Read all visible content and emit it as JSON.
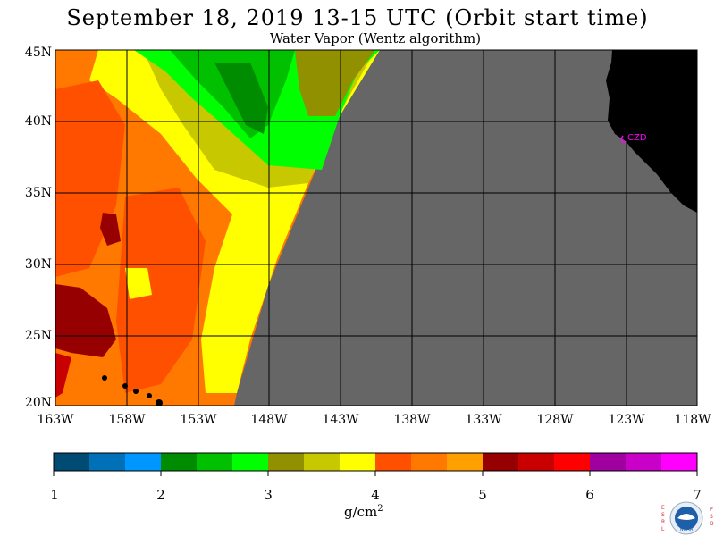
{
  "title": "September 18, 2019  13-15 UTC  (Orbit start time)",
  "subtitle": "Water Vapor (Wentz algorithm)",
  "map": {
    "lat_labels": [
      "45N",
      "40N",
      "35N",
      "30N",
      "25N",
      "20N"
    ],
    "lon_labels": [
      "163W",
      "158W",
      "153W",
      "148W",
      "143W",
      "138W",
      "133W",
      "128W",
      "123W",
      "118W"
    ],
    "lat_range": [
      20,
      45
    ],
    "lon_range": [
      -163,
      -118
    ],
    "no_data_color": "#666666",
    "land_color": "#000000",
    "station_label": "CZD",
    "station_color": "#ff00ff"
  },
  "colorbar": {
    "labels": [
      "1",
      "2",
      "3",
      "4",
      "5",
      "6",
      "7"
    ],
    "unit_text": "g/cm",
    "unit_superscript": "2",
    "range": [
      1,
      7
    ],
    "colors": [
      "#004b73",
      "#0071b8",
      "#0096ff",
      "#008c00",
      "#00c000",
      "#00ff00",
      "#909000",
      "#c8c800",
      "#ffff00",
      "#ff5000",
      "#ff7800",
      "#ffa000",
      "#960000",
      "#c80000",
      "#ff0000",
      "#a000a0",
      "#c800c8",
      "#ff00ff"
    ]
  },
  "logo": {
    "left_letters": "ESRL",
    "right_letters": "PSD",
    "center_text": "NOAA"
  }
}
